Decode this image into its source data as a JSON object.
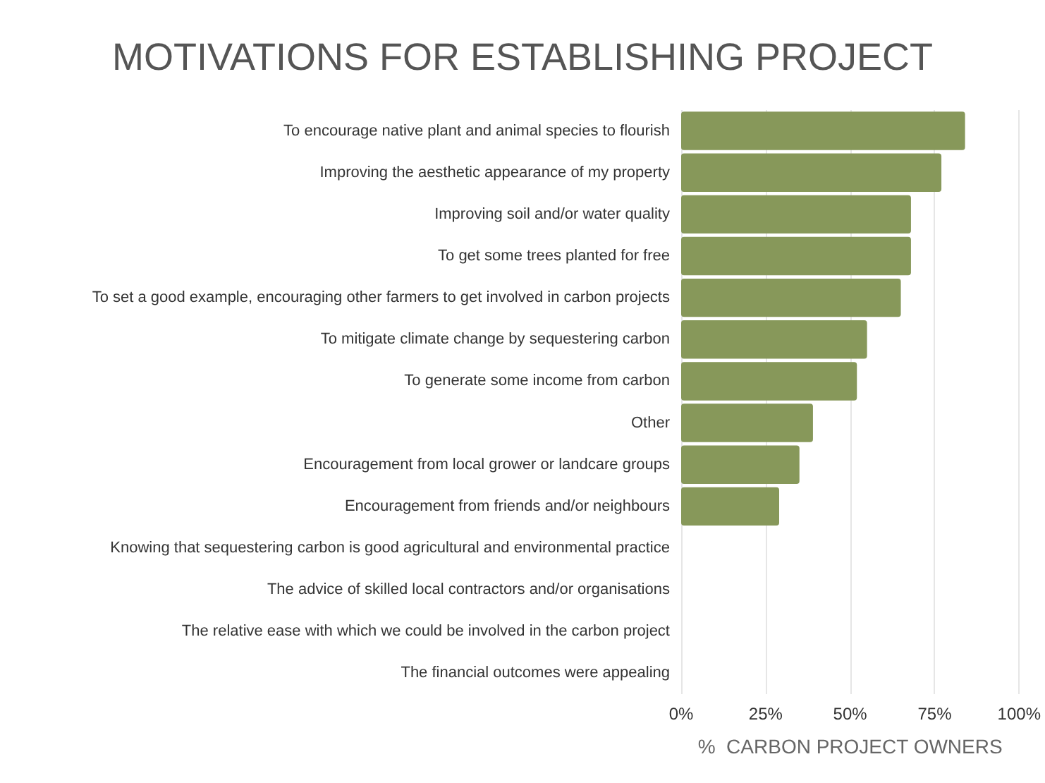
{
  "chart_data": {
    "type": "bar",
    "orientation": "horizontal",
    "title": "MOTIVATIONS FOR ESTABLISHING PROJECT",
    "xlabel": "%  CARBON PROJECT OWNERS",
    "categories": [
      "To encourage native plant and animal species to flourish",
      "Improving the aesthetic appearance of my property",
      "Improving soil and/or water quality",
      "To get some trees planted for free",
      "To set a good example, encouraging other farmers to get involved in carbon projects",
      "To mitigate climate change by sequestering carbon",
      "To generate some income from carbon",
      "Other",
      "Encouragement from local grower or landcare groups",
      "Encouragement from friends and/or neighbours",
      "Knowing that sequestering carbon is good agricultural and environmental practice",
      "The advice of skilled local contractors and/or organisations",
      "The relative ease with which we could be involved in the carbon project",
      "The financial outcomes were appealing"
    ],
    "values": [
      84,
      77,
      68,
      68,
      65,
      55,
      52,
      39,
      35,
      29,
      0,
      0,
      0,
      0
    ],
    "color": "#87985a",
    "xlim": [
      0,
      100
    ],
    "xticks": [
      {
        "value": 0,
        "label": "0%"
      },
      {
        "value": 25,
        "label": "25%"
      },
      {
        "value": 50,
        "label": "50%"
      },
      {
        "value": 75,
        "label": "75%"
      },
      {
        "value": 100,
        "label": "100%"
      }
    ],
    "grid": "x"
  }
}
